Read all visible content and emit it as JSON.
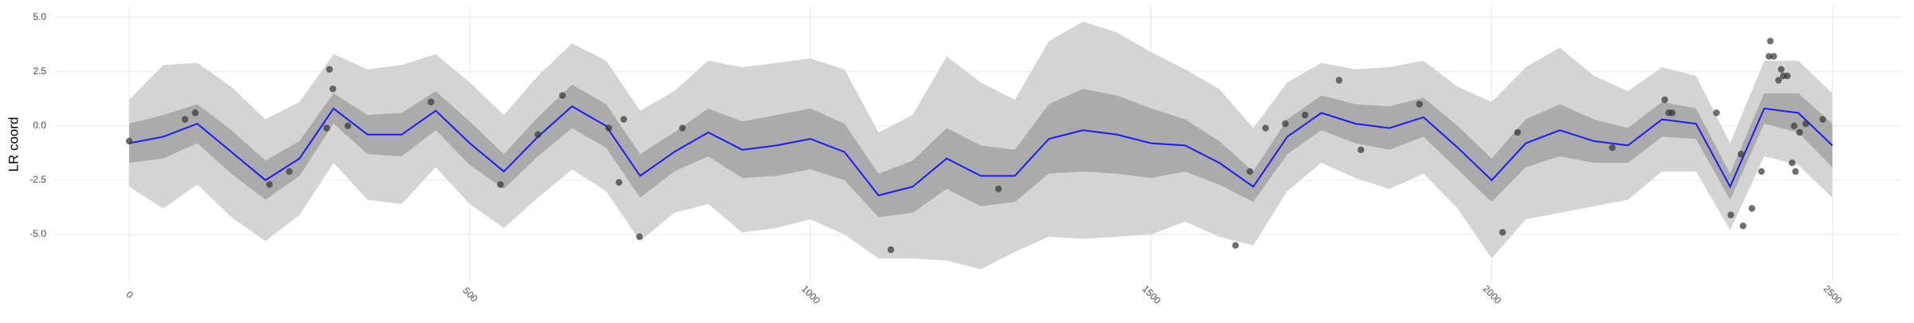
{
  "chart_data": {
    "type": "line",
    "ylabel": "LR coord",
    "xlim": [
      -110,
      2600
    ],
    "ylim": [
      -7.2,
      5.5
    ],
    "xticks": [
      0,
      500,
      1000,
      1500,
      2000,
      2500
    ],
    "yticks": [
      {
        "value": -5,
        "label": "-5.0"
      },
      -2.5,
      {
        "value": 0,
        "label": "0.0"
      },
      2.5,
      {
        "value": 5,
        "label": "5.0"
      }
    ],
    "grid": true,
    "x": [
      0,
      50,
      100,
      150,
      200,
      250,
      300,
      350,
      400,
      450,
      500,
      550,
      600,
      650,
      700,
      750,
      800,
      850,
      900,
      950,
      1000,
      1050,
      1100,
      1150,
      1200,
      1250,
      1300,
      1350,
      1400,
      1450,
      1500,
      1550,
      1600,
      1650,
      1700,
      1750,
      1800,
      1850,
      1900,
      1950,
      2000,
      2050,
      2100,
      2150,
      2200,
      2250,
      2300,
      2350,
      2400,
      2450,
      2500
    ],
    "bands": [
      {
        "color": "#d4d4d4",
        "lower": [
          -2.8,
          -3.8,
          -2.7,
          -4.2,
          -5.3,
          -4.1,
          -1.7,
          -3.4,
          -3.6,
          -1.9,
          -3.6,
          -4.7,
          -3.3,
          -2.0,
          -3.0,
          -5.3,
          -4.0,
          -3.6,
          -4.9,
          -4.7,
          -4.3,
          -5.0,
          -6.1,
          -6.1,
          -6.2,
          -6.6,
          -5.8,
          -5.1,
          -5.2,
          -5.1,
          -5.0,
          -4.4,
          -5.1,
          -5.5,
          -3.0,
          -1.7,
          -2.4,
          -2.9,
          -2.2,
          -3.8,
          -6.1,
          -4.3,
          -4.0,
          -3.7,
          -3.4,
          -2.1,
          -2.1,
          -4.8,
          -1.4,
          -1.8,
          -3.3
        ],
        "upper": [
          1.2,
          2.8,
          2.9,
          1.8,
          0.3,
          1.1,
          3.3,
          2.6,
          2.8,
          3.3,
          2.0,
          0.5,
          2.3,
          3.8,
          3.0,
          0.7,
          1.6,
          3.0,
          2.7,
          2.9,
          3.1,
          2.6,
          -0.3,
          0.5,
          3.2,
          2.0,
          1.2,
          3.9,
          4.8,
          4.3,
          3.4,
          2.6,
          1.7,
          -0.1,
          2.0,
          2.9,
          2.6,
          2.7,
          3.0,
          1.8,
          1.1,
          2.7,
          3.6,
          2.3,
          1.6,
          2.7,
          2.3,
          -0.8,
          3.0,
          3.0,
          1.5
        ]
      },
      {
        "color": "#ababab",
        "lower": [
          -1.7,
          -1.5,
          -0.8,
          -2.2,
          -3.4,
          -2.3,
          0.1,
          -1.3,
          -1.4,
          -0.2,
          -1.8,
          -2.9,
          -1.4,
          -0.1,
          -1.0,
          -3.3,
          -2.1,
          -1.4,
          -2.4,
          -2.3,
          -2.0,
          -2.5,
          -4.2,
          -4.0,
          -2.9,
          -3.7,
          -3.5,
          -2.2,
          -2.1,
          -2.2,
          -2.4,
          -2.1,
          -2.7,
          -3.5,
          -1.3,
          -0.2,
          -0.8,
          -1.1,
          -0.5,
          -2.0,
          -3.5,
          -1.9,
          -1.4,
          -1.7,
          -1.7,
          -0.5,
          -0.6,
          -3.4,
          0.1,
          -0.3,
          -1.9
        ],
        "upper": [
          0.1,
          0.5,
          1.0,
          -0.2,
          -1.6,
          -0.7,
          1.5,
          0.5,
          0.6,
          1.6,
          0.2,
          -1.3,
          0.4,
          1.9,
          1.0,
          -1.3,
          -0.3,
          0.8,
          0.2,
          0.5,
          0.8,
          0.1,
          -2.2,
          -1.6,
          -0.1,
          -0.9,
          -1.1,
          1.0,
          1.7,
          1.4,
          0.8,
          0.3,
          -0.7,
          -2.1,
          0.3,
          1.4,
          1.0,
          0.9,
          1.3,
          0.0,
          -1.5,
          0.3,
          1.0,
          0.3,
          -0.1,
          1.1,
          0.8,
          -2.2,
          1.5,
          1.5,
          0.1
        ]
      }
    ],
    "line": {
      "color": "#1a1aff",
      "values": [
        -0.8,
        -0.5,
        0.1,
        -1.2,
        -2.5,
        -1.5,
        0.8,
        -0.4,
        -0.4,
        0.7,
        -0.8,
        -2.1,
        -0.5,
        0.9,
        0.0,
        -2.3,
        -1.2,
        -0.3,
        -1.1,
        -0.9,
        -0.6,
        -1.2,
        -3.2,
        -2.8,
        -1.5,
        -2.3,
        -2.3,
        -0.6,
        -0.2,
        -0.4,
        -0.8,
        -0.9,
        -1.7,
        -2.8,
        -0.5,
        0.6,
        0.1,
        -0.1,
        0.4,
        -1.0,
        -2.5,
        -0.8,
        -0.2,
        -0.7,
        -0.9,
        0.3,
        0.1,
        -2.8,
        0.8,
        0.6,
        -0.9
      ]
    },
    "points": {
      "color": "#333333",
      "x": [
        0,
        82,
        97,
        206,
        235,
        290,
        294,
        299,
        321,
        443,
        545,
        600,
        636,
        704,
        719,
        726,
        749,
        812,
        1118,
        1276,
        1624,
        1645,
        1668,
        1697,
        1726,
        1776,
        1808,
        1894,
        2016,
        2038,
        2177,
        2254,
        2260,
        2265,
        2330,
        2351,
        2366,
        2369,
        2382,
        2396,
        2409,
        2407,
        2414,
        2421,
        2425,
        2428,
        2434,
        2441,
        2444,
        2446,
        2452,
        2461,
        2486
      ],
      "y": [
        -0.7,
        0.3,
        0.6,
        -2.7,
        -2.1,
        -0.1,
        2.6,
        1.7,
        0.0,
        1.1,
        -2.7,
        -0.4,
        1.4,
        -0.1,
        -2.6,
        0.3,
        -5.1,
        -0.1,
        -5.7,
        -2.9,
        -5.5,
        -2.1,
        -0.1,
        0.1,
        0.5,
        2.1,
        -1.1,
        1.0,
        -4.9,
        -0.3,
        -1.0,
        1.2,
        0.6,
        0.6,
        0.6,
        -4.1,
        -1.3,
        -4.6,
        -3.8,
        -2.1,
        3.9,
        3.2,
        3.2,
        2.1,
        2.6,
        2.3,
        2.3,
        -1.7,
        0.0,
        -2.1,
        -0.3,
        0.1,
        0.3
      ]
    }
  }
}
